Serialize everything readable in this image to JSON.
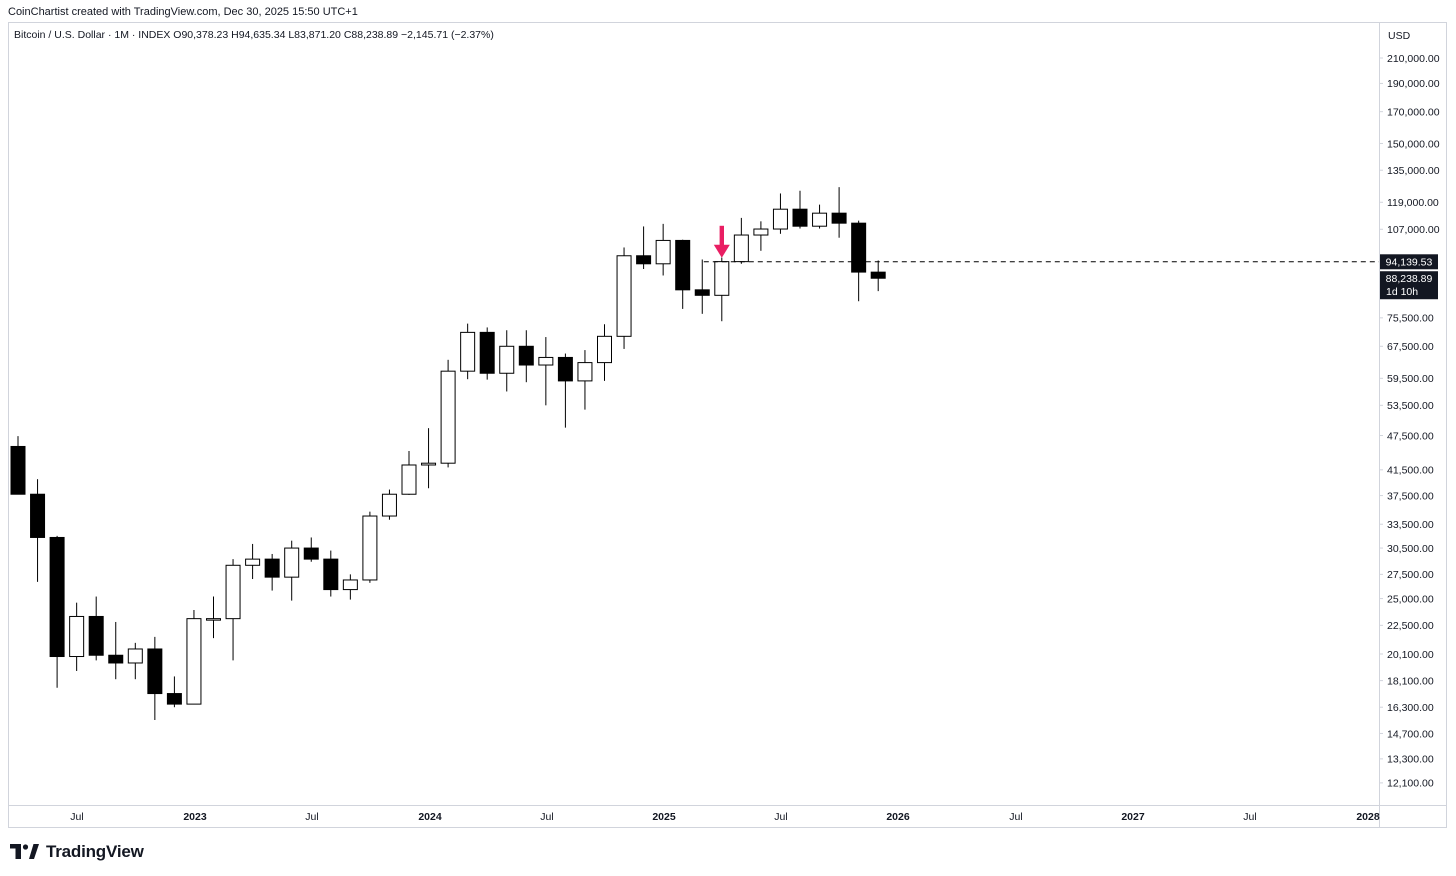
{
  "header": {
    "credit": "CoinChartist created with TradingView.com, Dec 30, 2025 15:50 UTC+1"
  },
  "legend": {
    "symbol": "Bitcoin / U.S. Dollar · 1M · INDEX",
    "open": "O90,378.23",
    "high": "H94,635.34",
    "low": "L83,871.20",
    "close": "C88,238.89",
    "change": "−2,145.71 (−2.37%)"
  },
  "price_axis": {
    "currency": "USD",
    "ticks": [
      "210,000.00",
      "190,000.00",
      "170,000.00",
      "150,000.00",
      "135,000.00",
      "119,000.00",
      "107,000.00",
      "75,500.00",
      "67,500.00",
      "59,500.00",
      "53,500.00",
      "47,500.00",
      "41,500.00",
      "37,500.00",
      "33,500.00",
      "30,500.00",
      "27,500.00",
      "25,000.00",
      "22,500.00",
      "20,100.00",
      "18,100.00",
      "16,300.00",
      "14,700.00",
      "13,300.00",
      "12,100.00"
    ],
    "level_label": "94,139.53",
    "last_price_label": "88,238.89",
    "countdown_label": "1d 10h"
  },
  "time_axis": {
    "labels": [
      "Jul",
      "2023",
      "Jul",
      "2024",
      "Jul",
      "2025",
      "Jul",
      "2026",
      "Jul",
      "2027",
      "Jul",
      "2028"
    ],
    "bold": [
      "2023",
      "2024",
      "2025",
      "2026",
      "2027",
      "2028"
    ]
  },
  "branding": {
    "logo_text": "TradingView"
  },
  "colors": {
    "bull_fill": "#ffffff",
    "bear_fill": "#000000",
    "wick": "#000000",
    "arrow": "#e91e63",
    "axis_label_bg": "#131722"
  },
  "chart_data": {
    "type": "candlestick",
    "interval": "1M",
    "scale": "log",
    "ylim": [
      11500,
      230000
    ],
    "horizontal_level": 94139.53,
    "arrow_marker_month": "2025-04",
    "candles": [
      {
        "t": "2022-04",
        "o": 45500,
        "h": 47400,
        "l": 37800,
        "c": 37700
      },
      {
        "t": "2022-05",
        "o": 37700,
        "h": 40000,
        "l": 26700,
        "c": 31800
      },
      {
        "t": "2022-06",
        "o": 31800,
        "h": 32000,
        "l": 17600,
        "c": 19900
      },
      {
        "t": "2022-07",
        "o": 19900,
        "h": 24600,
        "l": 18800,
        "c": 23300
      },
      {
        "t": "2022-08",
        "o": 23300,
        "h": 25200,
        "l": 19600,
        "c": 20000
      },
      {
        "t": "2022-09",
        "o": 20000,
        "h": 22800,
        "l": 18200,
        "c": 19400
      },
      {
        "t": "2022-10",
        "o": 19400,
        "h": 21000,
        "l": 18200,
        "c": 20500
      },
      {
        "t": "2022-11",
        "o": 20500,
        "h": 21500,
        "l": 15500,
        "c": 17200
      },
      {
        "t": "2022-12",
        "o": 17200,
        "h": 18400,
        "l": 16300,
        "c": 16500
      },
      {
        "t": "2023-01",
        "o": 16500,
        "h": 23900,
        "l": 16500,
        "c": 23100
      },
      {
        "t": "2023-02",
        "o": 23100,
        "h": 25200,
        "l": 21400,
        "c": 23100
      },
      {
        "t": "2023-03",
        "o": 23100,
        "h": 29200,
        "l": 19600,
        "c": 28500
      },
      {
        "t": "2023-04",
        "o": 28500,
        "h": 31000,
        "l": 27000,
        "c": 29200
      },
      {
        "t": "2023-05",
        "o": 29200,
        "h": 29800,
        "l": 25800,
        "c": 27200
      },
      {
        "t": "2023-06",
        "o": 27200,
        "h": 31400,
        "l": 24800,
        "c": 30500
      },
      {
        "t": "2023-07",
        "o": 30500,
        "h": 31800,
        "l": 28900,
        "c": 29200
      },
      {
        "t": "2023-08",
        "o": 29200,
        "h": 30200,
        "l": 25200,
        "c": 25900
      },
      {
        "t": "2023-09",
        "o": 25900,
        "h": 27500,
        "l": 24900,
        "c": 26900
      },
      {
        "t": "2023-10",
        "o": 26900,
        "h": 35200,
        "l": 26600,
        "c": 34600
      },
      {
        "t": "2023-11",
        "o": 34600,
        "h": 38400,
        "l": 34100,
        "c": 37700
      },
      {
        "t": "2023-12",
        "o": 37700,
        "h": 44700,
        "l": 37600,
        "c": 42300
      },
      {
        "t": "2024-01",
        "o": 42300,
        "h": 48900,
        "l": 38600,
        "c": 42600
      },
      {
        "t": "2024-02",
        "o": 42600,
        "h": 64000,
        "l": 41900,
        "c": 61200
      },
      {
        "t": "2024-03",
        "o": 61200,
        "h": 73800,
        "l": 59300,
        "c": 71300
      },
      {
        "t": "2024-04",
        "o": 71300,
        "h": 72700,
        "l": 59200,
        "c": 60700
      },
      {
        "t": "2024-05",
        "o": 60700,
        "h": 71900,
        "l": 56500,
        "c": 67500
      },
      {
        "t": "2024-06",
        "o": 67500,
        "h": 71900,
        "l": 58600,
        "c": 62700
      },
      {
        "t": "2024-07",
        "o": 62700,
        "h": 70000,
        "l": 53500,
        "c": 64600
      },
      {
        "t": "2024-08",
        "o": 64600,
        "h": 65600,
        "l": 49000,
        "c": 58900
      },
      {
        "t": "2024-09",
        "o": 58900,
        "h": 66500,
        "l": 52600,
        "c": 63300
      },
      {
        "t": "2024-10",
        "o": 63300,
        "h": 73600,
        "l": 58900,
        "c": 70200
      },
      {
        "t": "2024-11",
        "o": 70200,
        "h": 99600,
        "l": 66800,
        "c": 96400
      },
      {
        "t": "2024-12",
        "o": 96400,
        "h": 108200,
        "l": 91500,
        "c": 93400
      },
      {
        "t": "2025-01",
        "o": 93400,
        "h": 109300,
        "l": 89200,
        "c": 102400
      },
      {
        "t": "2025-02",
        "o": 102400,
        "h": 102700,
        "l": 78200,
        "c": 84300
      },
      {
        "t": "2025-03",
        "o": 84300,
        "h": 95000,
        "l": 76700,
        "c": 82500
      },
      {
        "t": "2025-04",
        "o": 82500,
        "h": 95700,
        "l": 74500,
        "c": 94200
      },
      {
        "t": "2025-05",
        "o": 94200,
        "h": 111900,
        "l": 93400,
        "c": 104600
      },
      {
        "t": "2025-06",
        "o": 104600,
        "h": 110400,
        "l": 98300,
        "c": 107100
      },
      {
        "t": "2025-07",
        "o": 107100,
        "h": 123200,
        "l": 105100,
        "c": 115800
      },
      {
        "t": "2025-08",
        "o": 115800,
        "h": 124500,
        "l": 107300,
        "c": 108300
      },
      {
        "t": "2025-09",
        "o": 108300,
        "h": 117900,
        "l": 107300,
        "c": 114000
      },
      {
        "t": "2025-10",
        "o": 114000,
        "h": 126300,
        "l": 103500,
        "c": 109600
      },
      {
        "t": "2025-11",
        "o": 109600,
        "h": 110700,
        "l": 80600,
        "c": 90400
      },
      {
        "t": "2025-12",
        "o": 90378.23,
        "h": 94635.34,
        "l": 83871.2,
        "c": 88238.89
      }
    ]
  }
}
